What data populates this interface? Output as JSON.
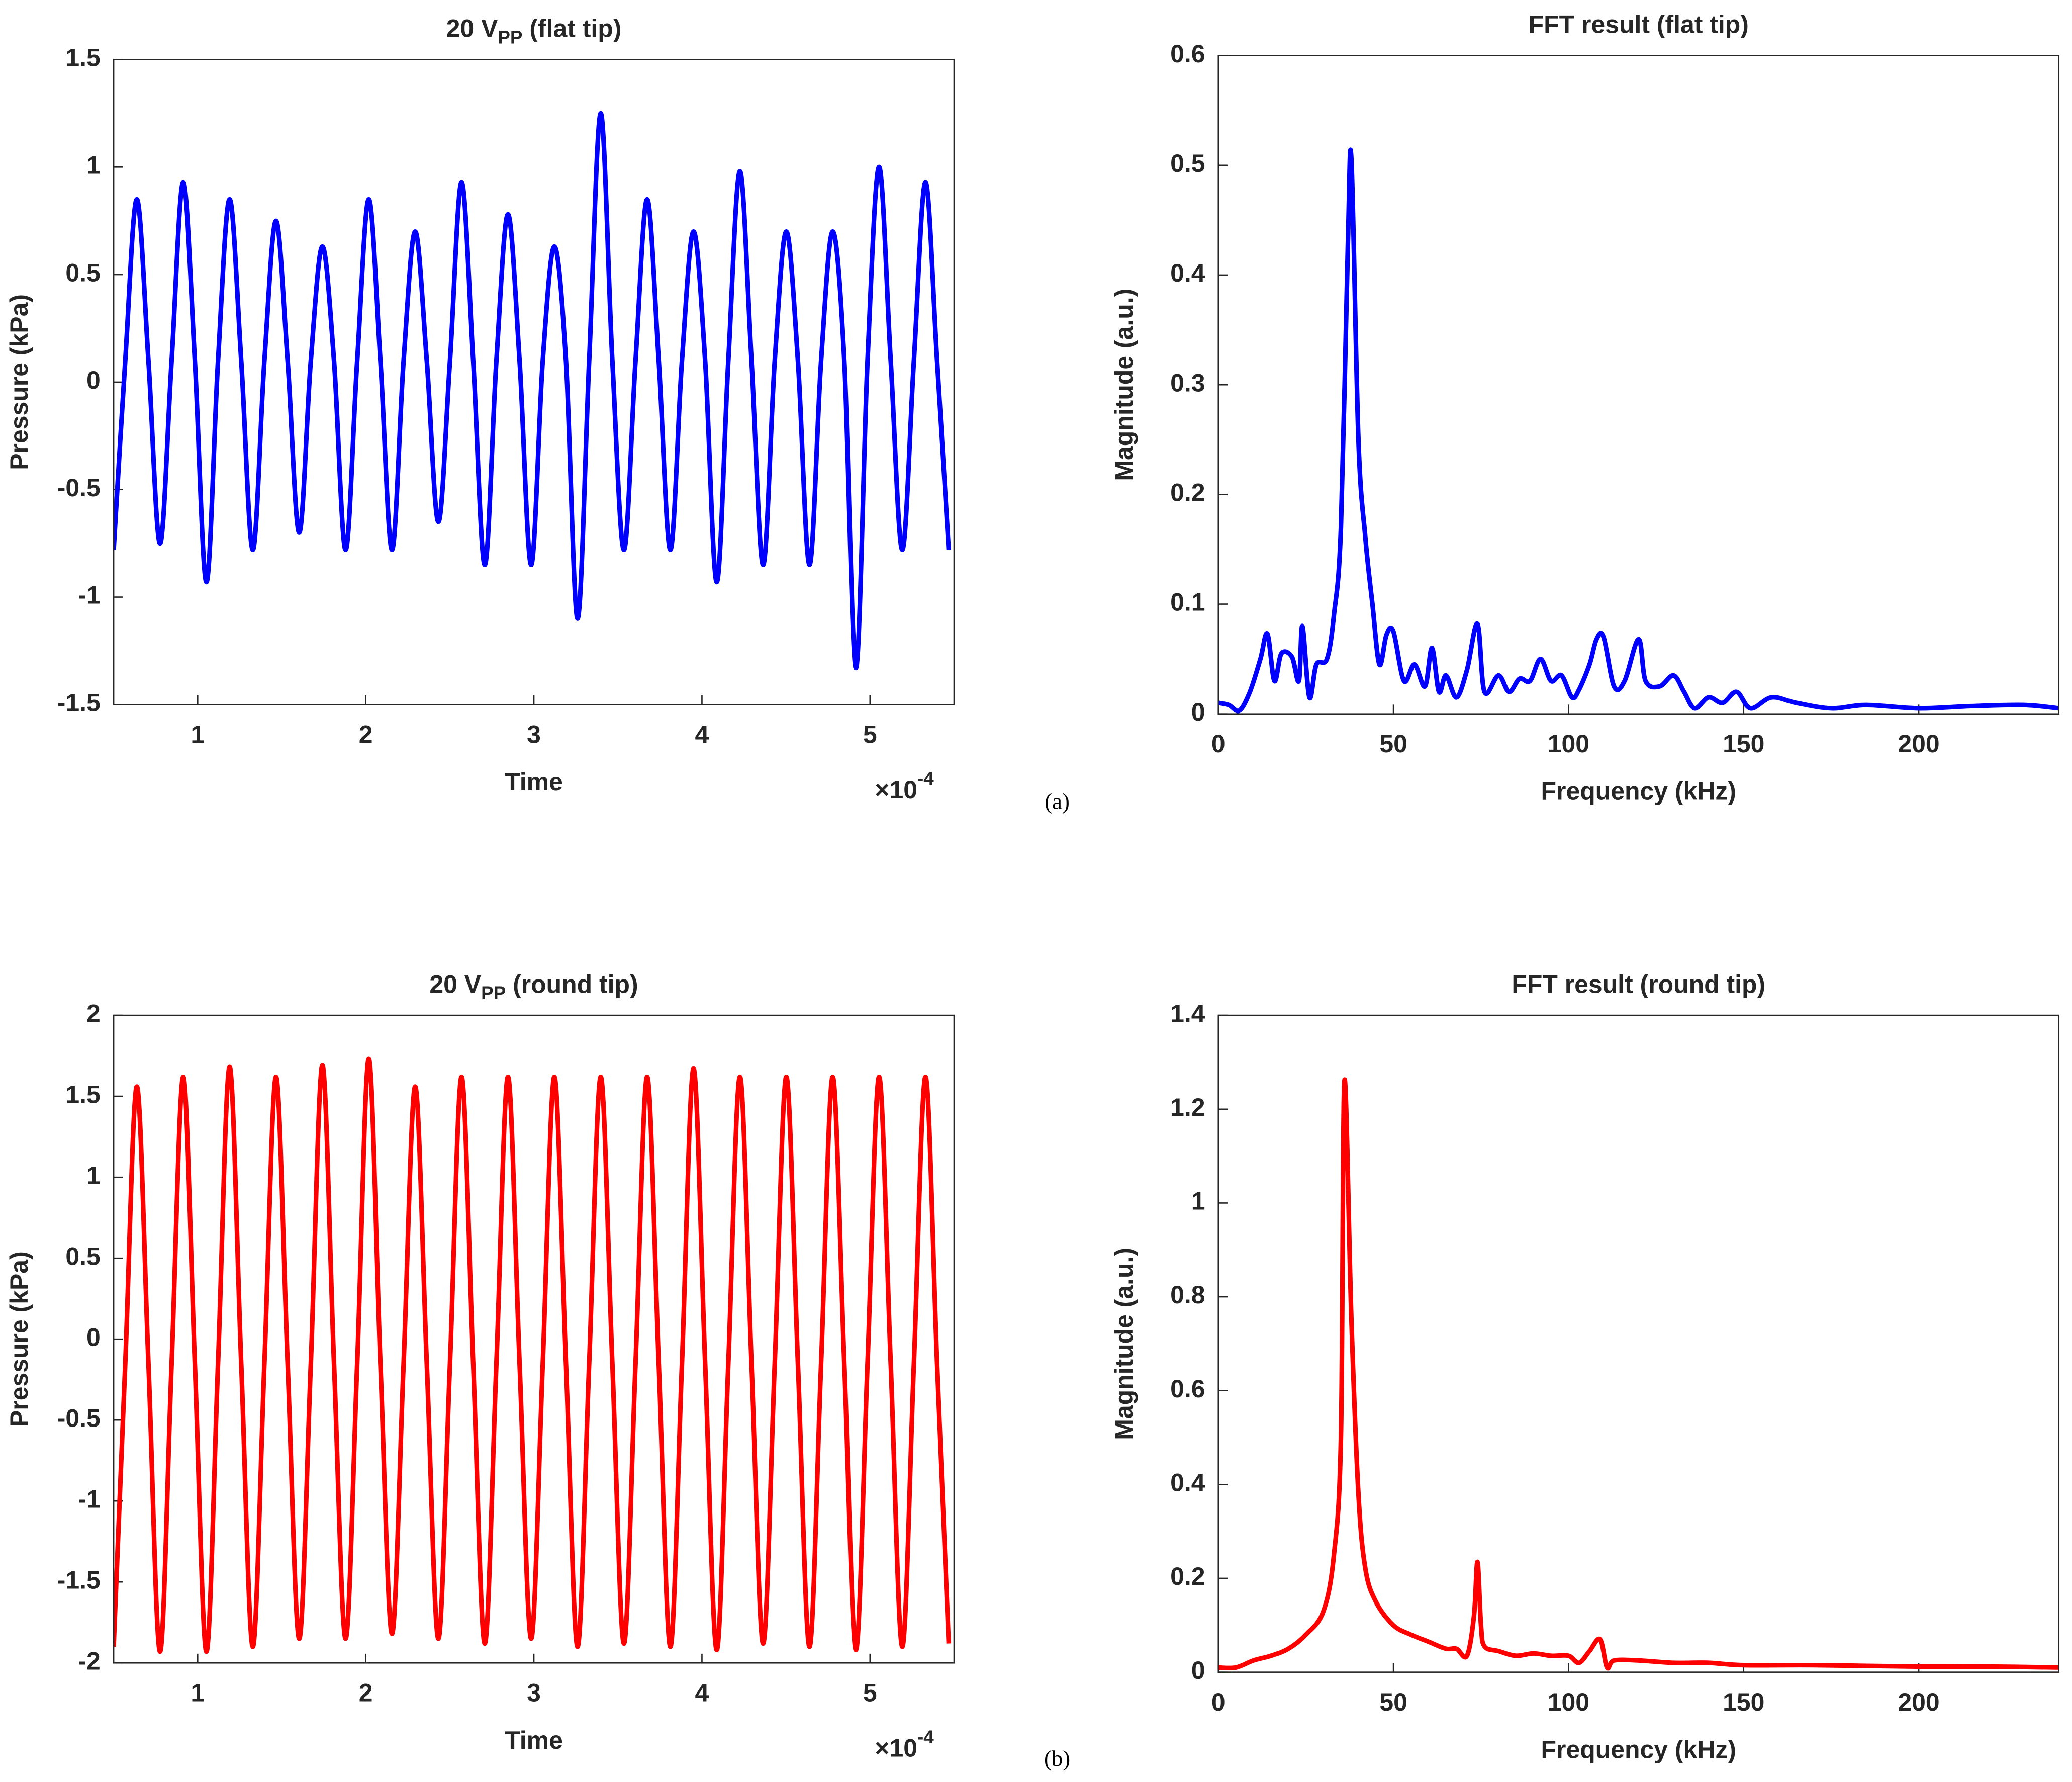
{
  "panel_labels": [
    "(a)",
    "(b)"
  ],
  "chart_data": [
    {
      "type": "line",
      "title": "20 V",
      "title_sub": "PP",
      "title_rest": " (flat tip)",
      "x_label": "Time",
      "y_label": "Pressure (kPa)",
      "x_multiplier": "×10",
      "x_multiplier_exp": "-4",
      "xlim": [
        0.5,
        5.5
      ],
      "xticks": [
        1,
        2,
        3,
        4,
        5
      ],
      "ylim": [
        -1.5,
        1.5
      ],
      "yticks": [
        -1.5,
        -1,
        -0.5,
        0,
        0.5,
        1,
        1.5
      ],
      "series": [
        {
          "name": "20 V",
          "color": "#0000ff",
          "x": [
            0.5,
            0.569,
            0.638,
            0.707,
            0.776,
            0.845,
            0.914,
            0.983,
            1.052,
            1.121,
            1.19,
            1.259,
            1.328,
            1.397,
            1.466,
            1.535,
            1.604,
            1.673,
            1.742,
            1.811,
            1.88,
            1.949,
            2.018,
            2.087,
            2.156,
            2.225,
            2.294,
            2.363,
            2.432,
            2.501,
            2.57,
            2.639,
            2.708,
            2.777,
            2.846,
            2.915,
            2.984,
            3.053,
            3.122,
            3.191,
            3.26,
            3.329,
            3.398,
            3.467,
            3.536,
            3.605,
            3.674,
            3.743,
            3.812,
            3.881,
            3.95,
            4.019,
            4.088,
            4.157,
            4.226,
            4.295,
            4.364,
            4.433,
            4.502,
            4.571,
            4.64,
            4.709,
            4.778,
            4.847,
            4.916,
            4.985,
            5.054,
            5.123,
            5.192,
            5.261,
            5.33,
            5.399,
            5.468
          ],
          "values": [
            -0.78,
            0.1,
            0.85,
            0.1,
            -0.75,
            0.1,
            0.93,
            0.1,
            -0.93,
            0.1,
            0.85,
            0.1,
            -0.78,
            0.1,
            0.75,
            0.1,
            -0.7,
            0.1,
            0.63,
            0.1,
            -0.78,
            0.1,
            0.85,
            0.1,
            -0.78,
            0.1,
            0.7,
            0.1,
            -0.65,
            0.1,
            0.93,
            0.1,
            -0.85,
            0.1,
            0.78,
            0.1,
            -0.85,
            0.1,
            0.63,
            0.1,
            -1.1,
            0.1,
            1.25,
            0.1,
            -0.78,
            0.1,
            0.85,
            0.1,
            -0.78,
            0.1,
            0.7,
            0.1,
            -0.93,
            0.1,
            0.98,
            0.1,
            -0.85,
            0.1,
            0.7,
            0.1,
            -0.85,
            0.1,
            0.7,
            0.1,
            -1.33,
            0.1,
            1,
            0.1,
            -0.78,
            0.1,
            0.93,
            0.1,
            -0.78
          ]
        }
      ]
    },
    {
      "type": "line",
      "title": "FFT result (flat tip)",
      "x_label": "Frequency (kHz)",
      "y_label": "Magnitude (a.u.)",
      "xlim": [
        0,
        240
      ],
      "xticks": [
        0,
        50,
        100,
        150,
        200
      ],
      "ylim": [
        0,
        0.6
      ],
      "yticks": [
        0,
        0.1,
        0.2,
        0.3,
        0.4,
        0.5,
        0.6
      ],
      "series": [
        {
          "name": "FFT result (flat tip)",
          "color": "#0000ff",
          "x": [
            0,
            3,
            6,
            9,
            12,
            14,
            16,
            18,
            21,
            23,
            24,
            26,
            28,
            31,
            33,
            35,
            37,
            38,
            40,
            42,
            44,
            46,
            48,
            50,
            53,
            56,
            59,
            61,
            63,
            65,
            68,
            71,
            74,
            76,
            80,
            83,
            86,
            89,
            92,
            95,
            98,
            101,
            103,
            106,
            108,
            110,
            113,
            116,
            120,
            122,
            126,
            130,
            133,
            136,
            140,
            144,
            148,
            152,
            158,
            165,
            175,
            185,
            200,
            215,
            230,
            240
          ],
          "values": [
            0.01,
            0.008,
            0.003,
            0.02,
            0.05,
            0.073,
            0.03,
            0.055,
            0.052,
            0.03,
            0.08,
            0.015,
            0.045,
            0.05,
            0.09,
            0.17,
            0.43,
            0.505,
            0.25,
            0.16,
            0.1,
            0.045,
            0.072,
            0.075,
            0.03,
            0.045,
            0.025,
            0.06,
            0.02,
            0.035,
            0.015,
            0.04,
            0.082,
            0.02,
            0.035,
            0.02,
            0.032,
            0.03,
            0.05,
            0.03,
            0.035,
            0.015,
            0.022,
            0.045,
            0.068,
            0.07,
            0.025,
            0.03,
            0.068,
            0.03,
            0.025,
            0.035,
            0.02,
            0.005,
            0.015,
            0.01,
            0.02,
            0.005,
            0.015,
            0.01,
            0.005,
            0.008,
            0.005,
            0.007,
            0.008,
            0.005
          ]
        }
      ]
    },
    {
      "type": "line",
      "title": "20 V",
      "title_sub": "PP",
      "title_rest": " (round tip)",
      "x_label": "Time",
      "y_label": "Pressure (kPa)",
      "x_multiplier": "×10",
      "x_multiplier_exp": "-4",
      "xlim": [
        0.5,
        5.5
      ],
      "xticks": [
        1,
        2,
        3,
        4,
        5
      ],
      "ylim": [
        -2,
        2
      ],
      "yticks": [
        -2,
        -1.5,
        -1,
        -0.5,
        0,
        0.5,
        1,
        1.5,
        2
      ],
      "series": [
        {
          "name": "20 V",
          "color": "#ff0000",
          "x": [
            0.5,
            0.569,
            0.638,
            0.707,
            0.776,
            0.845,
            0.914,
            0.983,
            1.052,
            1.121,
            1.19,
            1.259,
            1.328,
            1.397,
            1.466,
            1.535,
            1.604,
            1.673,
            1.742,
            1.811,
            1.88,
            1.949,
            2.018,
            2.087,
            2.156,
            2.225,
            2.294,
            2.363,
            2.432,
            2.501,
            2.57,
            2.639,
            2.708,
            2.777,
            2.846,
            2.915,
            2.984,
            3.053,
            3.122,
            3.191,
            3.26,
            3.329,
            3.398,
            3.467,
            3.536,
            3.605,
            3.674,
            3.743,
            3.812,
            3.881,
            3.95,
            4.019,
            4.088,
            4.157,
            4.226,
            4.295,
            4.364,
            4.433,
            4.502,
            4.571,
            4.64,
            4.709,
            4.778,
            4.847,
            4.916,
            4.985,
            5.054,
            5.123,
            5.192,
            5.261,
            5.33,
            5.399,
            5.468
          ],
          "values": [
            -1.9,
            -0.15,
            1.56,
            -0.15,
            -1.93,
            -0.15,
            1.62,
            -0.15,
            -1.93,
            -0.15,
            1.68,
            -0.15,
            -1.9,
            -0.15,
            1.62,
            -0.15,
            -1.85,
            -0.15,
            1.69,
            -0.15,
            -1.85,
            -0.15,
            1.73,
            -0.15,
            -1.82,
            -0.15,
            1.56,
            -0.15,
            -1.85,
            -0.15,
            1.62,
            -0.15,
            -1.88,
            -0.15,
            1.62,
            -0.15,
            -1.85,
            -0.15,
            1.62,
            -0.15,
            -1.9,
            -0.15,
            1.62,
            -0.15,
            -1.88,
            -0.15,
            1.62,
            -0.15,
            -1.9,
            -0.15,
            1.67,
            -0.15,
            -1.92,
            -0.15,
            1.62,
            -0.15,
            -1.88,
            -0.15,
            1.62,
            -0.15,
            -1.9,
            -0.15,
            1.62,
            -0.15,
            -1.92,
            -0.15,
            1.62,
            -0.15,
            -1.9,
            -0.15,
            1.62,
            -0.15,
            -1.88
          ]
        }
      ]
    },
    {
      "type": "line",
      "title": "FFT result (round tip)",
      "x_label": "Frequency (kHz)",
      "y_label": "Magnitude (a.u.)",
      "xlim": [
        0,
        240
      ],
      "xticks": [
        0,
        50,
        100,
        150,
        200
      ],
      "ylim": [
        0,
        1.4
      ],
      "yticks": [
        0,
        0.2,
        0.4,
        0.6,
        0.8,
        1,
        1.2,
        1.4
      ],
      "series": [
        {
          "name": "FFT result (round tip)",
          "color": "#ff0000",
          "x": [
            0,
            5,
            10,
            15,
            20,
            25,
            30,
            33,
            35,
            36,
            38,
            40,
            42,
            45,
            50,
            55,
            60,
            65,
            68,
            71,
            73,
            74,
            75,
            76,
            80,
            85,
            90,
            95,
            100,
            103,
            106,
            109,
            111,
            113,
            120,
            130,
            140,
            150,
            170,
            200,
            220,
            240
          ],
          "values": [
            0.01,
            0.01,
            0.025,
            0.035,
            0.05,
            0.08,
            0.13,
            0.25,
            0.5,
            1.26,
            0.75,
            0.38,
            0.22,
            0.15,
            0.1,
            0.08,
            0.065,
            0.05,
            0.05,
            0.035,
            0.12,
            0.235,
            0.1,
            0.055,
            0.045,
            0.035,
            0.04,
            0.035,
            0.035,
            0.02,
            0.045,
            0.07,
            0.01,
            0.025,
            0.025,
            0.02,
            0.02,
            0.015,
            0.015,
            0.012,
            0.012,
            0.01
          ]
        }
      ]
    }
  ]
}
